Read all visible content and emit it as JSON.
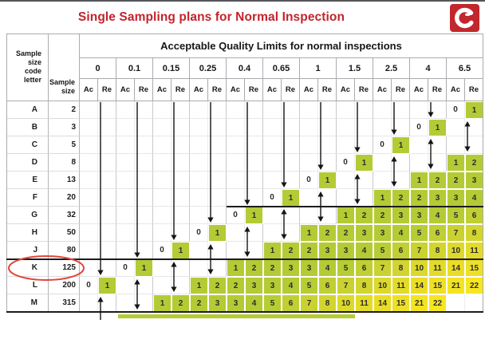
{
  "page": {
    "title": "Single Sampling plans for Normal Inspection",
    "logo": {
      "glyph": "C-swirl",
      "bg_color": "#c1272d",
      "fg_color": "#ffffff"
    }
  },
  "table": {
    "corner_header_lines": [
      "Sample",
      "size",
      "code",
      "letter"
    ],
    "sample_size_header_lines": [
      "Sample",
      "size"
    ],
    "aql_span_title": "Acceptable Quality Limits for normal inspections",
    "aql_levels": [
      "0",
      "0.1",
      "0.15",
      "0.25",
      "0.4",
      "0.65",
      "1",
      "1.5",
      "2.5",
      "4",
      "6.5"
    ],
    "sub_headers": {
      "ac": "Ac",
      "re": "Re"
    },
    "rows": [
      {
        "code": "A",
        "size": "2",
        "plans": {
          "6.5": [
            0,
            1
          ]
        }
      },
      {
        "code": "B",
        "size": "3",
        "plans": {
          "4": [
            0,
            1
          ]
        }
      },
      {
        "code": "C",
        "size": "5",
        "plans": {
          "2.5": [
            0,
            1
          ]
        }
      },
      {
        "code": "D",
        "size": "8",
        "plans": {
          "1.5": [
            0,
            1
          ],
          "6.5": [
            1,
            2
          ]
        }
      },
      {
        "code": "E",
        "size": "13",
        "plans": {
          "1": [
            0,
            1
          ],
          "4": [
            1,
            2
          ],
          "6.5": [
            2,
            3
          ]
        }
      },
      {
        "code": "F",
        "size": "20",
        "plans": {
          "0.65": [
            0,
            1
          ],
          "2.5": [
            1,
            2
          ],
          "4": [
            2,
            3
          ],
          "6.5": [
            3,
            4
          ]
        }
      },
      {
        "code": "G",
        "size": "32",
        "plans": {
          "0.4": [
            0,
            1
          ],
          "1.5": [
            1,
            2
          ],
          "2.5": [
            2,
            3
          ],
          "4": [
            3,
            4
          ],
          "6.5": [
            5,
            6
          ]
        }
      },
      {
        "code": "H",
        "size": "50",
        "plans": {
          "0.25": [
            0,
            1
          ],
          "1": [
            1,
            2
          ],
          "1.5": [
            2,
            3
          ],
          "2.5": [
            3,
            4
          ],
          "4": [
            5,
            6
          ],
          "6.5": [
            7,
            8
          ]
        }
      },
      {
        "code": "J",
        "size": "80",
        "plans": {
          "0.15": [
            0,
            1
          ],
          "0.65": [
            1,
            2
          ],
          "1": [
            2,
            3
          ],
          "1.5": [
            3,
            4
          ],
          "2.5": [
            5,
            6
          ],
          "4": [
            7,
            8
          ],
          "6.5": [
            10,
            11
          ]
        }
      },
      {
        "code": "K",
        "size": "125",
        "plans": {
          "0.1": [
            0,
            1
          ],
          "0.4": [
            1,
            2
          ],
          "0.65": [
            2,
            3
          ],
          "1": [
            3,
            4
          ],
          "1.5": [
            5,
            6
          ],
          "2.5": [
            7,
            8
          ],
          "4": [
            10,
            11
          ],
          "6.5": [
            14,
            15
          ]
        }
      },
      {
        "code": "L",
        "size": "200",
        "plans": {
          "0": [
            0,
            1
          ],
          "0.25": [
            1,
            2
          ],
          "0.4": [
            2,
            3
          ],
          "0.65": [
            3,
            4
          ],
          "1": [
            5,
            6
          ],
          "1.5": [
            7,
            8
          ],
          "2.5": [
            10,
            11
          ],
          "4": [
            14,
            15
          ],
          "6.5": [
            21,
            22
          ]
        }
      },
      {
        "code": "M",
        "size": "315",
        "plans": {
          "0.15": [
            1,
            2
          ],
          "0.25": [
            2,
            3
          ],
          "0.4": [
            3,
            4
          ],
          "0.65": [
            5,
            6
          ],
          "1": [
            7,
            8
          ],
          "1.5": [
            10,
            11
          ],
          "2.5": [
            14,
            15
          ],
          "4": [
            21,
            22
          ]
        }
      }
    ],
    "arrows": {
      "down_use_plan_below": [
        {
          "aql": "0",
          "to": "L"
        },
        {
          "aql": "0.1",
          "to": "K"
        },
        {
          "aql": "0.15",
          "to": "J"
        },
        {
          "aql": "0.25",
          "to": "H"
        },
        {
          "aql": "0.4",
          "to": "G"
        },
        {
          "aql": "0.65",
          "to": "F"
        },
        {
          "aql": "1",
          "to": "E"
        },
        {
          "aql": "1.5",
          "to": "D"
        },
        {
          "aql": "2.5",
          "to": "C"
        },
        {
          "aql": "4",
          "to": "B"
        }
      ],
      "double_span": [
        {
          "aql": "0.1",
          "rows": [
            "L",
            "M"
          ]
        },
        {
          "aql": "0.15",
          "rows": [
            "K",
            "L"
          ]
        },
        {
          "aql": "0.25",
          "rows": [
            "J",
            "K"
          ]
        },
        {
          "aql": "0.4",
          "rows": [
            "H",
            "J"
          ]
        },
        {
          "aql": "0.65",
          "rows": [
            "G",
            "H"
          ]
        },
        {
          "aql": "1",
          "rows": [
            "F",
            "G"
          ]
        },
        {
          "aql": "1.5",
          "rows": [
            "E",
            "F"
          ]
        },
        {
          "aql": "2.5",
          "rows": [
            "D",
            "E"
          ]
        },
        {
          "aql": "4",
          "rows": [
            "C",
            "D"
          ]
        },
        {
          "aql": "6.5",
          "rows": [
            "B",
            "C"
          ]
        }
      ],
      "up_cut_off": [
        {
          "aql": "0",
          "row": "M"
        }
      ]
    },
    "highlight": {
      "circled_row": "K",
      "circle_color": "#e2473c"
    },
    "section_lines": [
      {
        "from_aql": "0.4",
        "above_row": "G"
      },
      {
        "from_aql": "0",
        "above_row": "K",
        "full_width": true
      },
      {
        "below_row": "M",
        "full_width": true
      }
    ],
    "colors": {
      "title_red": "#c2242b",
      "green": "#b5cc34",
      "value_colors": {
        "1": "#b4cb35",
        "2": "#b4cb35",
        "3": "#b4cb35",
        "4": "#b4cb35",
        "5": "#b7cd34",
        "6": "#c0cf33",
        "7": "#c9d231",
        "8": "#d2d52f",
        "10": "#dcd92c",
        "11": "#e2db2a",
        "14": "#eadd27",
        "15": "#eee027",
        "21": "#f3e423",
        "22": "#f6e622"
      }
    }
  }
}
